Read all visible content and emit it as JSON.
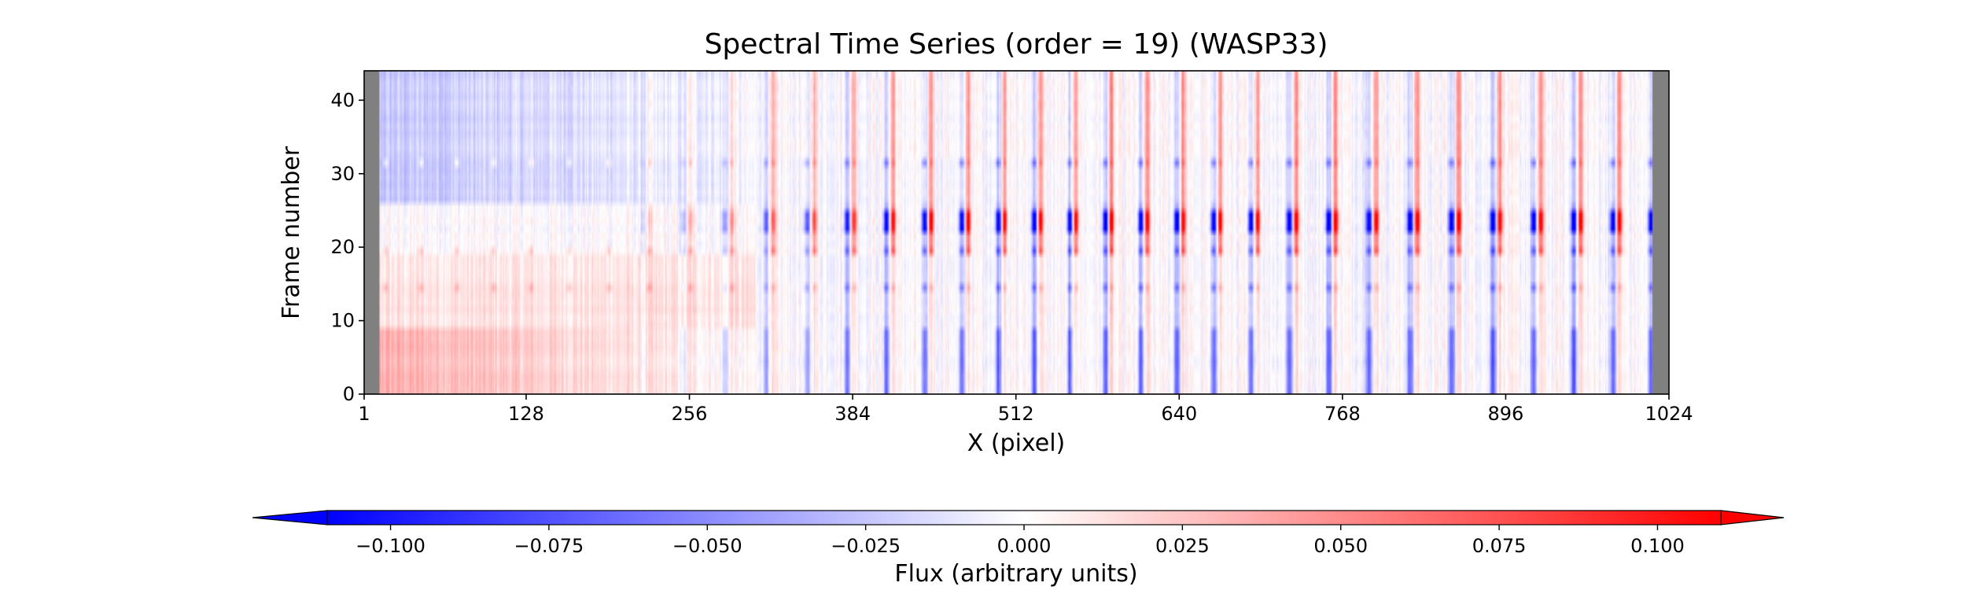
{
  "chart_data": {
    "type": "heatmap",
    "title": "Spectral Time Series (order = 19) (WASP33)",
    "xlabel": "X (pixel)",
    "ylabel": "Frame number",
    "xlim": [
      1,
      1024
    ],
    "ylim": [
      0,
      44
    ],
    "x_ticks": [
      1,
      128,
      256,
      384,
      512,
      640,
      768,
      896,
      1024
    ],
    "x_tick_labels": [
      "1",
      "128",
      "256",
      "384",
      "512",
      "640",
      "768",
      "896",
      "1024"
    ],
    "y_ticks": [
      0,
      10,
      20,
      30,
      40
    ],
    "y_tick_labels": [
      "0",
      "10",
      "20",
      "30",
      "40"
    ],
    "masked_columns": [
      [
        1,
        12
      ],
      [
        1012,
        1024
      ]
    ],
    "masked_color": "#808080",
    "colormap": "bwr",
    "colormap_colors": [
      "#0000ff",
      "#ffffff",
      "#ff0000"
    ],
    "vmin": -0.11,
    "vmax": 0.11,
    "colorbar": {
      "label": "Flux (arbitrary units)",
      "orientation": "horizontal",
      "placement": "bottom",
      "extend": "both",
      "ticks": [
        -0.1,
        -0.075,
        -0.05,
        -0.025,
        0.0,
        0.025,
        0.05,
        0.075,
        0.1
      ],
      "tick_labels": [
        "−0.100",
        "−0.075",
        "−0.050",
        "−0.025",
        "0.000",
        "0.025",
        "0.050",
        "0.075",
        "0.100"
      ]
    },
    "n_frames": 44,
    "n_pixels": 1024,
    "pattern": {
      "strong_dip_frames": [
        22,
        23,
        24
      ],
      "dip_period_pixels": 30,
      "blue_region_frames": [
        0,
        9
      ],
      "red_region_left_frames": [
        0,
        18
      ],
      "blue_region_left_frames": [
        26,
        44
      ],
      "grid": false
    }
  }
}
